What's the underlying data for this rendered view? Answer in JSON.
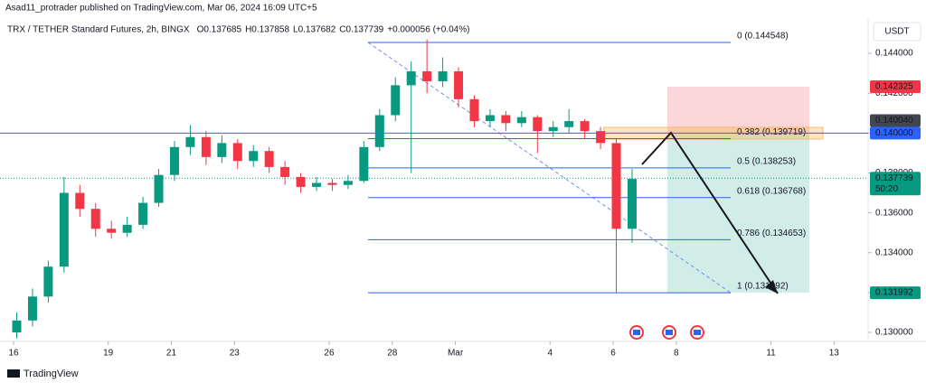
{
  "header": {
    "published": "Asad11_protrader published on TradingView.com, Mar 06, 2024 16:09 UTC+5"
  },
  "chart_data": {
    "type": "candlestick",
    "title": "TRX / TETHER Standard Futures, 2h, BINGX",
    "ohlc_legend": [
      {
        "key": "O",
        "value": "0.137685"
      },
      {
        "key": "H",
        "value": "0.137858"
      },
      {
        "key": "L",
        "value": "0.137682"
      },
      {
        "key": "C",
        "value": "0.137739"
      }
    ],
    "change": "+0.000056 (+0.04%)",
    "currency": "USDT",
    "x": [
      0.1,
      0.6,
      1.1,
      1.6,
      2.1,
      2.6,
      3.1,
      3.6,
      4.1,
      4.6,
      5.1,
      5.6,
      6.1,
      6.6,
      7.1,
      7.6,
      8.1,
      8.6,
      9.1,
      9.6,
      10.1,
      10.6,
      11.1,
      11.6,
      12.1,
      12.6,
      13.1,
      13.6,
      14.1,
      14.6,
      15.1,
      15.6,
      16.1,
      16.6,
      17.1,
      17.6,
      18.1,
      18.6,
      19.1,
      19.6
    ],
    "open": [
      0.13,
      0.1306,
      0.1318,
      0.1333,
      0.137,
      0.1362,
      0.1352,
      0.135,
      0.1354,
      0.1365,
      0.1379,
      0.1393,
      0.1398,
      0.1388,
      0.1395,
      0.1386,
      0.1391,
      0.1383,
      0.1378,
      0.1373,
      0.1375,
      0.1374,
      0.1376,
      0.1393,
      0.1409,
      0.1424,
      0.1431,
      0.1426,
      0.1431,
      0.1417,
      0.1406,
      0.1409,
      0.1405,
      0.1408,
      0.1401,
      0.1403,
      0.1406,
      0.1401,
      0.1395,
      0.1352
    ],
    "high": [
      0.131,
      0.1322,
      0.1336,
      0.1378,
      0.1374,
      0.1365,
      0.1356,
      0.1358,
      0.1368,
      0.1382,
      0.1396,
      0.1404,
      0.1401,
      0.1399,
      0.1397,
      0.1394,
      0.1393,
      0.1386,
      0.138,
      0.1378,
      0.1377,
      0.1379,
      0.1396,
      0.1412,
      0.1428,
      0.1436,
      0.1447,
      0.1438,
      0.1433,
      0.1419,
      0.1412,
      0.1411,
      0.1411,
      0.1409,
      0.1406,
      0.1412,
      0.1407,
      0.1403,
      0.1397,
      0.1382
    ],
    "low": [
      0.1297,
      0.1303,
      0.1315,
      0.133,
      0.1358,
      0.1348,
      0.1347,
      0.1348,
      0.1352,
      0.1363,
      0.1376,
      0.1389,
      0.1384,
      0.1385,
      0.1382,
      0.1383,
      0.138,
      0.1374,
      0.137,
      0.1371,
      0.1371,
      0.1372,
      0.1375,
      0.1391,
      0.1406,
      0.138,
      0.142,
      0.1423,
      0.1413,
      0.1403,
      0.1403,
      0.1401,
      0.1403,
      0.139,
      0.1398,
      0.14,
      0.1397,
      0.1392,
      0.132,
      0.1345
    ],
    "close": [
      0.1306,
      0.1318,
      0.1333,
      0.137,
      0.1362,
      0.1352,
      0.135,
      0.1354,
      0.1365,
      0.1379,
      0.1393,
      0.1398,
      0.1388,
      0.1395,
      0.1386,
      0.1391,
      0.1383,
      0.1378,
      0.1373,
      0.1375,
      0.1374,
      0.1376,
      0.1393,
      0.1409,
      0.1424,
      0.1431,
      0.1426,
      0.1431,
      0.1417,
      0.1406,
      0.1409,
      0.1405,
      0.1408,
      0.1401,
      0.1403,
      0.1406,
      0.1401,
      0.1395,
      0.1352,
      0.1377
    ],
    "up_color": "#089981",
    "down_color": "#f23645",
    "xlim": [
      -0.43,
      27.08
    ],
    "xticks": [
      {
        "value": 0,
        "label": "16"
      },
      {
        "value": 3,
        "label": "19"
      },
      {
        "value": 5,
        "label": "21"
      },
      {
        "value": 7,
        "label": "23"
      },
      {
        "value": 10,
        "label": "26"
      },
      {
        "value": 12,
        "label": "28"
      },
      {
        "value": 14,
        "label": "Mar"
      },
      {
        "value": 17,
        "label": "4"
      },
      {
        "value": 19,
        "label": "6"
      },
      {
        "value": 21,
        "label": "8"
      },
      {
        "value": 24,
        "label": "11"
      },
      {
        "value": 26,
        "label": "13"
      }
    ],
    "ylim": [
      0.12955,
      0.14577
    ],
    "yticks": [
      {
        "value": 0.144,
        "label": "0.144000"
      },
      {
        "value": 0.142,
        "label": "0.142000"
      },
      {
        "value": 0.14,
        "label": "0.140000"
      },
      {
        "value": 0.138,
        "label": "0.138000"
      },
      {
        "value": 0.136,
        "label": "0.136000"
      },
      {
        "value": 0.134,
        "label": "0.134000"
      },
      {
        "value": 0.132,
        "label": "0.132000"
      },
      {
        "value": 0.13,
        "label": "0.130000"
      }
    ],
    "fib_levels": [
      {
        "label": "0 (0.144548)",
        "value": 0.144548
      },
      {
        "label": "0.382 (0.139719)",
        "value": 0.139719
      },
      {
        "label": "0.5 (0.138253)",
        "value": 0.138253
      },
      {
        "label": "0.618 (0.136768)",
        "value": 0.136768
      },
      {
        "label": "0.786 (0.134653)",
        "value": 0.134653
      },
      {
        "label": "1 (0.131992)",
        "value": 0.131992
      }
    ],
    "price_tags": [
      {
        "label": "0.142325",
        "value": 0.142325,
        "color": "#f23645"
      },
      {
        "label": "0.140040",
        "value": 0.14004,
        "color": "#434651"
      },
      {
        "label": "0.140000",
        "value": 0.14,
        "color": "#2962ff"
      },
      {
        "label": "0.137739",
        "value": 0.137739,
        "color": "#089981"
      },
      {
        "label": "0.131992",
        "value": 0.131992,
        "color": "#089981"
      }
    ],
    "countdown": "50:20"
  },
  "footer": {
    "brand": "TradingView"
  }
}
